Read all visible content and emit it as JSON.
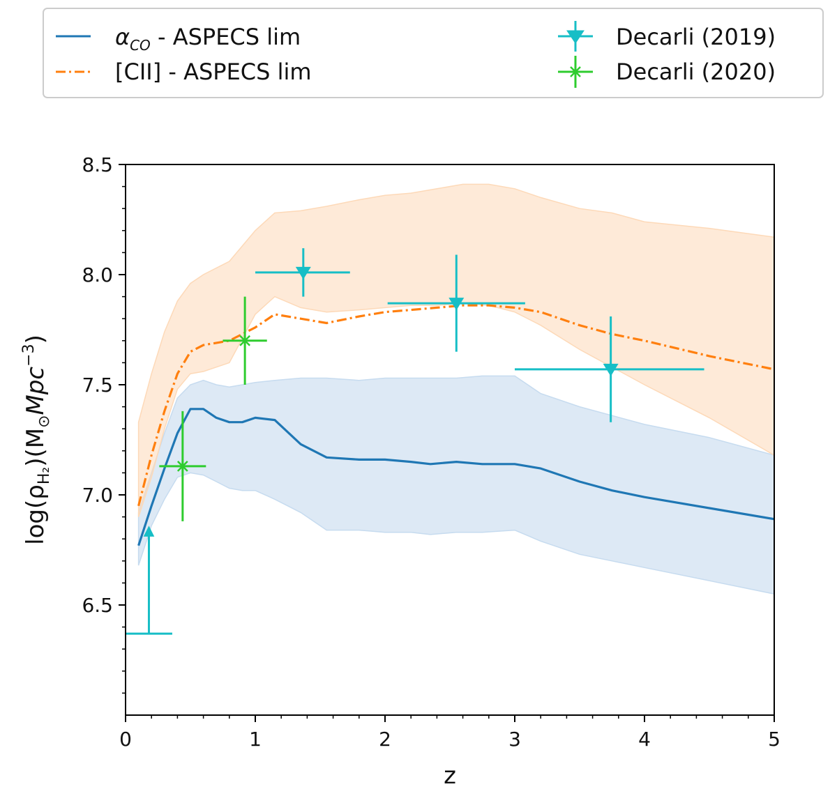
{
  "chart_data": {
    "type": "line",
    "xlabel": "z",
    "ylabel": "log(ρ",
    "ylabel_sub": "H₂",
    "ylabel_tail": ")(M",
    "ylabel_sun": "⊙",
    "ylabel_unit": "Mpc",
    "ylabel_exp": "−3",
    "ylabel_close": ")",
    "xlim": [
      0,
      5
    ],
    "ylim": [
      6.0,
      8.5
    ],
    "xticks": [
      0,
      1,
      2,
      3,
      4,
      5
    ],
    "xtick_labels": [
      "0",
      "1",
      "2",
      "3",
      "4",
      "5"
    ],
    "yticks": [
      6.5,
      7.0,
      7.5,
      8.0,
      8.5
    ],
    "ytick_labels": [
      "6.5",
      "7.0",
      "7.5",
      "8.0",
      "8.5"
    ],
    "legend": {
      "placement": "top, outside plot",
      "entries": [
        {
          "greek": "α",
          "sub": "CO",
          "rest": " - ASPECS lim"
        },
        {
          "label": "[CII] - ASPECS lim"
        },
        {
          "label": "Decarli (2019)"
        },
        {
          "label": "Decarli (2020)"
        }
      ]
    },
    "colors": {
      "aco": "#1f77b4",
      "cii": "#ff7f0e",
      "decarli2019": "#17bec6",
      "decarli2020": "#2ecc2e",
      "aco_band": "#c6dbef",
      "cii_band": "#fdd9b8"
    },
    "series": [
      {
        "name": "αCO - ASPECS lim",
        "x": [
          0.1,
          0.2,
          0.3,
          0.4,
          0.5,
          0.6,
          0.7,
          0.8,
          0.9,
          1.0,
          1.15,
          1.35,
          1.55,
          1.8,
          2.0,
          2.2,
          2.35,
          2.55,
          2.75,
          3.0,
          3.2,
          3.5,
          3.75,
          4.0,
          4.5,
          5.0
        ],
        "y": [
          6.77,
          6.95,
          7.12,
          7.28,
          7.39,
          7.39,
          7.35,
          7.33,
          7.33,
          7.35,
          7.34,
          7.23,
          7.17,
          7.16,
          7.16,
          7.15,
          7.14,
          7.15,
          7.14,
          7.14,
          7.12,
          7.06,
          7.02,
          6.99,
          6.94,
          6.89
        ],
        "band_upper": [
          6.92,
          7.1,
          7.28,
          7.44,
          7.5,
          7.52,
          7.5,
          7.49,
          7.5,
          7.51,
          7.52,
          7.53,
          7.53,
          7.52,
          7.53,
          7.53,
          7.53,
          7.53,
          7.54,
          7.54,
          7.46,
          7.4,
          7.36,
          7.32,
          7.26,
          7.18
        ],
        "band_lower": [
          6.68,
          6.86,
          6.98,
          7.08,
          7.1,
          7.09,
          7.06,
          7.03,
          7.02,
          7.02,
          6.98,
          6.92,
          6.84,
          6.84,
          6.83,
          6.83,
          6.82,
          6.83,
          6.83,
          6.84,
          6.79,
          6.73,
          6.7,
          6.67,
          6.61,
          6.55
        ]
      },
      {
        "name": "[CII] - ASPECS lim",
        "x": [
          0.1,
          0.2,
          0.3,
          0.4,
          0.5,
          0.6,
          0.8,
          1.0,
          1.15,
          1.35,
          1.55,
          1.8,
          2.0,
          2.2,
          2.4,
          2.6,
          2.8,
          3.0,
          3.2,
          3.5,
          3.75,
          4.0,
          4.5,
          5.0
        ],
        "y": [
          6.95,
          7.18,
          7.38,
          7.55,
          7.65,
          7.68,
          7.7,
          7.76,
          7.82,
          7.8,
          7.78,
          7.81,
          7.83,
          7.84,
          7.85,
          7.86,
          7.86,
          7.85,
          7.83,
          7.77,
          7.73,
          7.7,
          7.63,
          7.57
        ],
        "band_upper": [
          7.33,
          7.55,
          7.74,
          7.88,
          7.96,
          8.0,
          8.06,
          8.2,
          8.28,
          8.29,
          8.31,
          8.34,
          8.36,
          8.37,
          8.39,
          8.41,
          8.41,
          8.39,
          8.35,
          8.3,
          8.28,
          8.24,
          8.21,
          8.17
        ],
        "band_lower": [
          6.9,
          7.08,
          7.3,
          7.48,
          7.55,
          7.56,
          7.6,
          7.82,
          7.9,
          7.85,
          7.83,
          7.84,
          7.85,
          7.86,
          7.86,
          7.87,
          7.86,
          7.83,
          7.77,
          7.66,
          7.58,
          7.5,
          7.35,
          7.18
        ]
      }
    ],
    "points": [
      {
        "series": "Decarli (2019)",
        "x": 1.37,
        "y": 8.01,
        "xerr": [
          0.37,
          0.36
        ],
        "yerr": [
          0.11,
          0.11
        ],
        "marker": "triangle-down"
      },
      {
        "series": "Decarli (2019)",
        "x": 2.55,
        "y": 7.87,
        "xerr": [
          0.53,
          0.53
        ],
        "yerr": [
          0.22,
          0.22
        ],
        "marker": "triangle-down"
      },
      {
        "series": "Decarli (2019)",
        "x": 3.74,
        "y": 7.57,
        "xerr": [
          0.74,
          0.72
        ],
        "yerr": [
          0.24,
          0.24
        ],
        "marker": "triangle-down"
      },
      {
        "series": "Decarli (2020)",
        "x": 0.44,
        "y": 7.13,
        "xerr": [
          0.18,
          0.18
        ],
        "yerr": [
          0.25,
          0.25
        ],
        "marker": "star"
      },
      {
        "series": "Decarli (2020)",
        "x": 0.92,
        "y": 7.7,
        "xerr": [
          0.17,
          0.17
        ],
        "yerr": [
          0.2,
          0.2
        ],
        "marker": "star"
      }
    ],
    "limits": [
      {
        "series": "Decarli (2019)",
        "x": 0.18,
        "y": 6.37,
        "xerr": [
          0.18,
          0.18
        ],
        "arrow_to": 6.85,
        "kind": "lower-limit"
      }
    ]
  }
}
